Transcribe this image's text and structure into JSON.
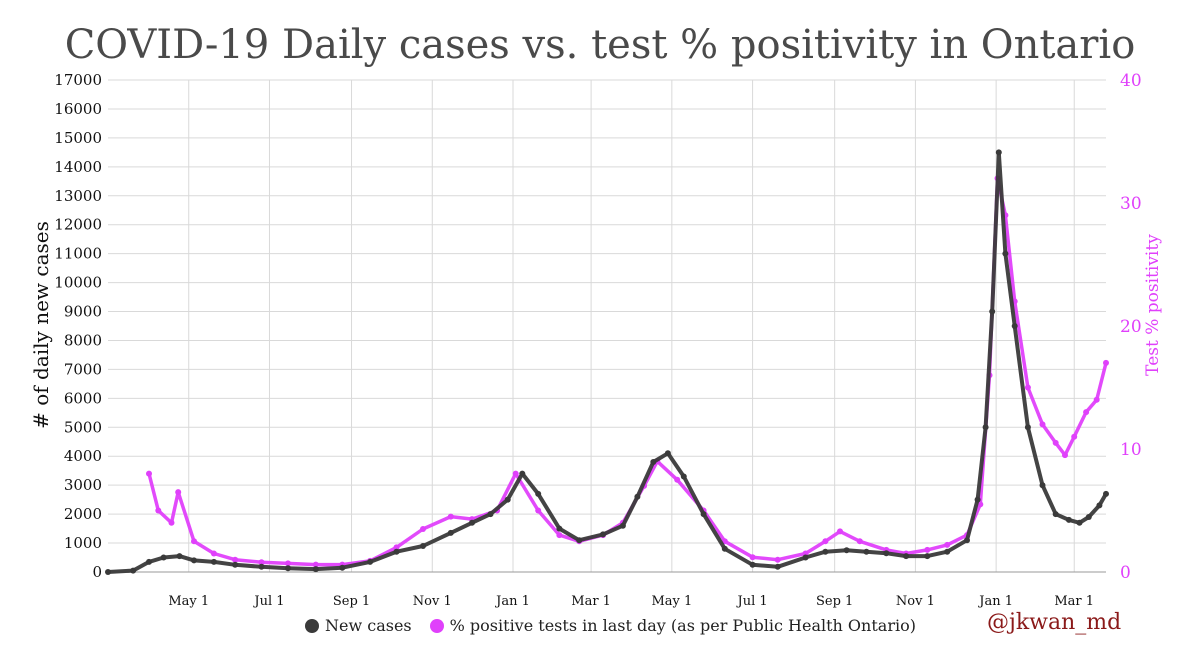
{
  "title": "COVID-19 Daily cases vs. test % positivity in Ontario",
  "credit": "@jkwan_md",
  "legend": {
    "cases_label": "New cases",
    "positivity_label": "% positive tests in last day (as per Public Health Ontario)"
  },
  "colors": {
    "cases": "#3a3a3a",
    "positivity": "#e040fb",
    "grid": "#d9d9d9",
    "credit": "#8b1a1a"
  },
  "chart_data": {
    "type": "line",
    "ylabel": "# of daily new cases",
    "y2label": "Test % positivity",
    "ylim": [
      0,
      17000
    ],
    "y2lim": [
      0,
      40
    ],
    "yticks": [
      0,
      1000,
      2000,
      3000,
      4000,
      5000,
      6000,
      7000,
      8000,
      9000,
      10000,
      11000,
      12000,
      13000,
      14000,
      15000,
      16000,
      17000
    ],
    "y2ticks": [
      0,
      10,
      20,
      30,
      40
    ],
    "x_tick_labels": [
      "May 1",
      "Jul 1",
      "Sep 1",
      "Nov 1",
      "Jan 1",
      "Mar 1",
      "May 1",
      "Jul 1",
      "Sep 1",
      "Nov 1",
      "Jan 1",
      "Mar 1"
    ],
    "x_tick_dates": [
      "2020-05-01",
      "2020-07-01",
      "2020-09-01",
      "2020-11-01",
      "2021-01-01",
      "2021-03-01",
      "2021-05-01",
      "2021-07-01",
      "2021-09-01",
      "2021-11-01",
      "2022-01-01",
      "2022-03-01"
    ],
    "x_range": [
      "2020-03-01",
      "2022-03-25"
    ],
    "grid": true,
    "legend_position": "bottom",
    "series": [
      {
        "name": "New cases",
        "axis": "left",
        "x": [
          "2020-03-01",
          "2020-03-20",
          "2020-04-01",
          "2020-04-12",
          "2020-04-24",
          "2020-05-05",
          "2020-05-20",
          "2020-06-05",
          "2020-06-25",
          "2020-07-15",
          "2020-08-05",
          "2020-08-25",
          "2020-09-15",
          "2020-10-05",
          "2020-10-25",
          "2020-11-15",
          "2020-12-01",
          "2020-12-15",
          "2020-12-28",
          "2021-01-08",
          "2021-01-20",
          "2021-02-05",
          "2021-02-20",
          "2021-03-10",
          "2021-03-25",
          "2021-04-05",
          "2021-04-17",
          "2021-04-28",
          "2021-05-10",
          "2021-05-25",
          "2021-06-10",
          "2021-07-01",
          "2021-07-20",
          "2021-08-10",
          "2021-08-25",
          "2021-09-10",
          "2021-09-25",
          "2021-10-10",
          "2021-10-25",
          "2021-11-10",
          "2021-11-25",
          "2021-12-10",
          "2021-12-18",
          "2021-12-24",
          "2021-12-29",
          "2022-01-03",
          "2022-01-08",
          "2022-01-15",
          "2022-01-25",
          "2022-02-05",
          "2022-02-15",
          "2022-02-25",
          "2022-03-05",
          "2022-03-12",
          "2022-03-20",
          "2022-03-25"
        ],
        "values": [
          0,
          50,
          350,
          500,
          550,
          400,
          350,
          250,
          180,
          130,
          100,
          150,
          350,
          700,
          900,
          1350,
          1700,
          2000,
          2500,
          3400,
          2700,
          1500,
          1100,
          1300,
          1600,
          2600,
          3800,
          4100,
          3300,
          2000,
          800,
          250,
          180,
          500,
          700,
          750,
          700,
          650,
          550,
          550,
          700,
          1100,
          2500,
          5000,
          9000,
          14500,
          11000,
          8500,
          5000,
          3000,
          2000,
          1800,
          1700,
          1900,
          2300,
          2700
        ]
      },
      {
        "name": "% positive tests in last day (as per Public Health Ontario)",
        "axis": "right",
        "x": [
          "2020-04-01",
          "2020-04-08",
          "2020-04-18",
          "2020-04-23",
          "2020-05-05",
          "2020-05-20",
          "2020-06-05",
          "2020-06-25",
          "2020-07-15",
          "2020-08-05",
          "2020-08-25",
          "2020-09-15",
          "2020-10-05",
          "2020-10-25",
          "2020-11-15",
          "2020-12-01",
          "2020-12-20",
          "2021-01-03",
          "2021-01-20",
          "2021-02-05",
          "2021-02-20",
          "2021-03-10",
          "2021-03-25",
          "2021-04-10",
          "2021-04-20",
          "2021-05-05",
          "2021-05-25",
          "2021-06-10",
          "2021-07-01",
          "2021-07-20",
          "2021-08-10",
          "2021-08-25",
          "2021-09-05",
          "2021-09-20",
          "2021-10-10",
          "2021-10-25",
          "2021-11-10",
          "2021-11-25",
          "2021-12-10",
          "2021-12-20",
          "2021-12-27",
          "2022-01-02",
          "2022-01-08",
          "2022-01-15",
          "2022-01-25",
          "2022-02-05",
          "2022-02-15",
          "2022-02-22",
          "2022-03-01",
          "2022-03-10",
          "2022-03-18",
          "2022-03-25"
        ],
        "values": [
          8,
          5,
          4,
          6.5,
          2.5,
          1.5,
          1,
          0.8,
          0.7,
          0.6,
          0.6,
          0.9,
          2,
          3.5,
          4.5,
          4.3,
          5,
          8,
          5,
          3,
          2.5,
          3,
          4,
          7,
          9,
          7.5,
          5,
          2.5,
          1.2,
          1,
          1.5,
          2.5,
          3.3,
          2.5,
          1.8,
          1.5,
          1.8,
          2.2,
          3,
          5.5,
          16,
          32,
          29,
          22,
          15,
          12,
          10.5,
          9.5,
          11,
          13,
          14,
          17
        ]
      }
    ]
  }
}
